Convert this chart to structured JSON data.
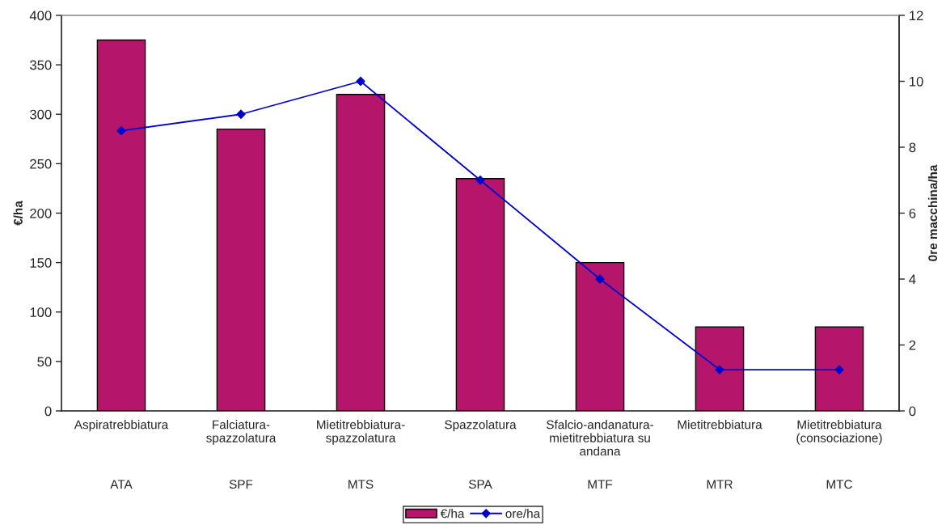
{
  "chart_data": {
    "type": "bar",
    "categories": [
      "Aspiratrebbiatura",
      "Falciatura-\nspazzolatura",
      "Mietitrebbiatura-\nspazzolatura",
      "Spazzolatura",
      "Sfalcio-andanatura-\nmietitrebbiatura su\nandana",
      "Mietitrebbiatura",
      "Mietitrebbiatura\n(consociazione)"
    ],
    "series": [
      {
        "name": "€/ha",
        "color": "#b5156a",
        "values": [
          375,
          285,
          320,
          235,
          150,
          85,
          85
        ]
      },
      {
        "name": "ore/ha",
        "type": "line",
        "axis": "y2",
        "color": "#0000cc",
        "marker": "diamond",
        "values": [
          8.5,
          9,
          10,
          7,
          4,
          1.25,
          1.25
        ]
      }
    ],
    "ylabel": "€/ha",
    "y2label": "0re macchina/ha",
    "ylim": [
      0,
      400
    ],
    "yticks": [
      0,
      50,
      100,
      150,
      200,
      250,
      300,
      350,
      400
    ],
    "y2lim": [
      0,
      12
    ],
    "y2ticks": [
      0,
      2,
      4,
      6,
      8,
      10,
      12
    ],
    "annotations": [
      "ATA",
      "SPF",
      "MTS",
      "SPA",
      "MTF",
      "MTR",
      "MTC"
    ],
    "grid": false,
    "legend": "bottom"
  }
}
